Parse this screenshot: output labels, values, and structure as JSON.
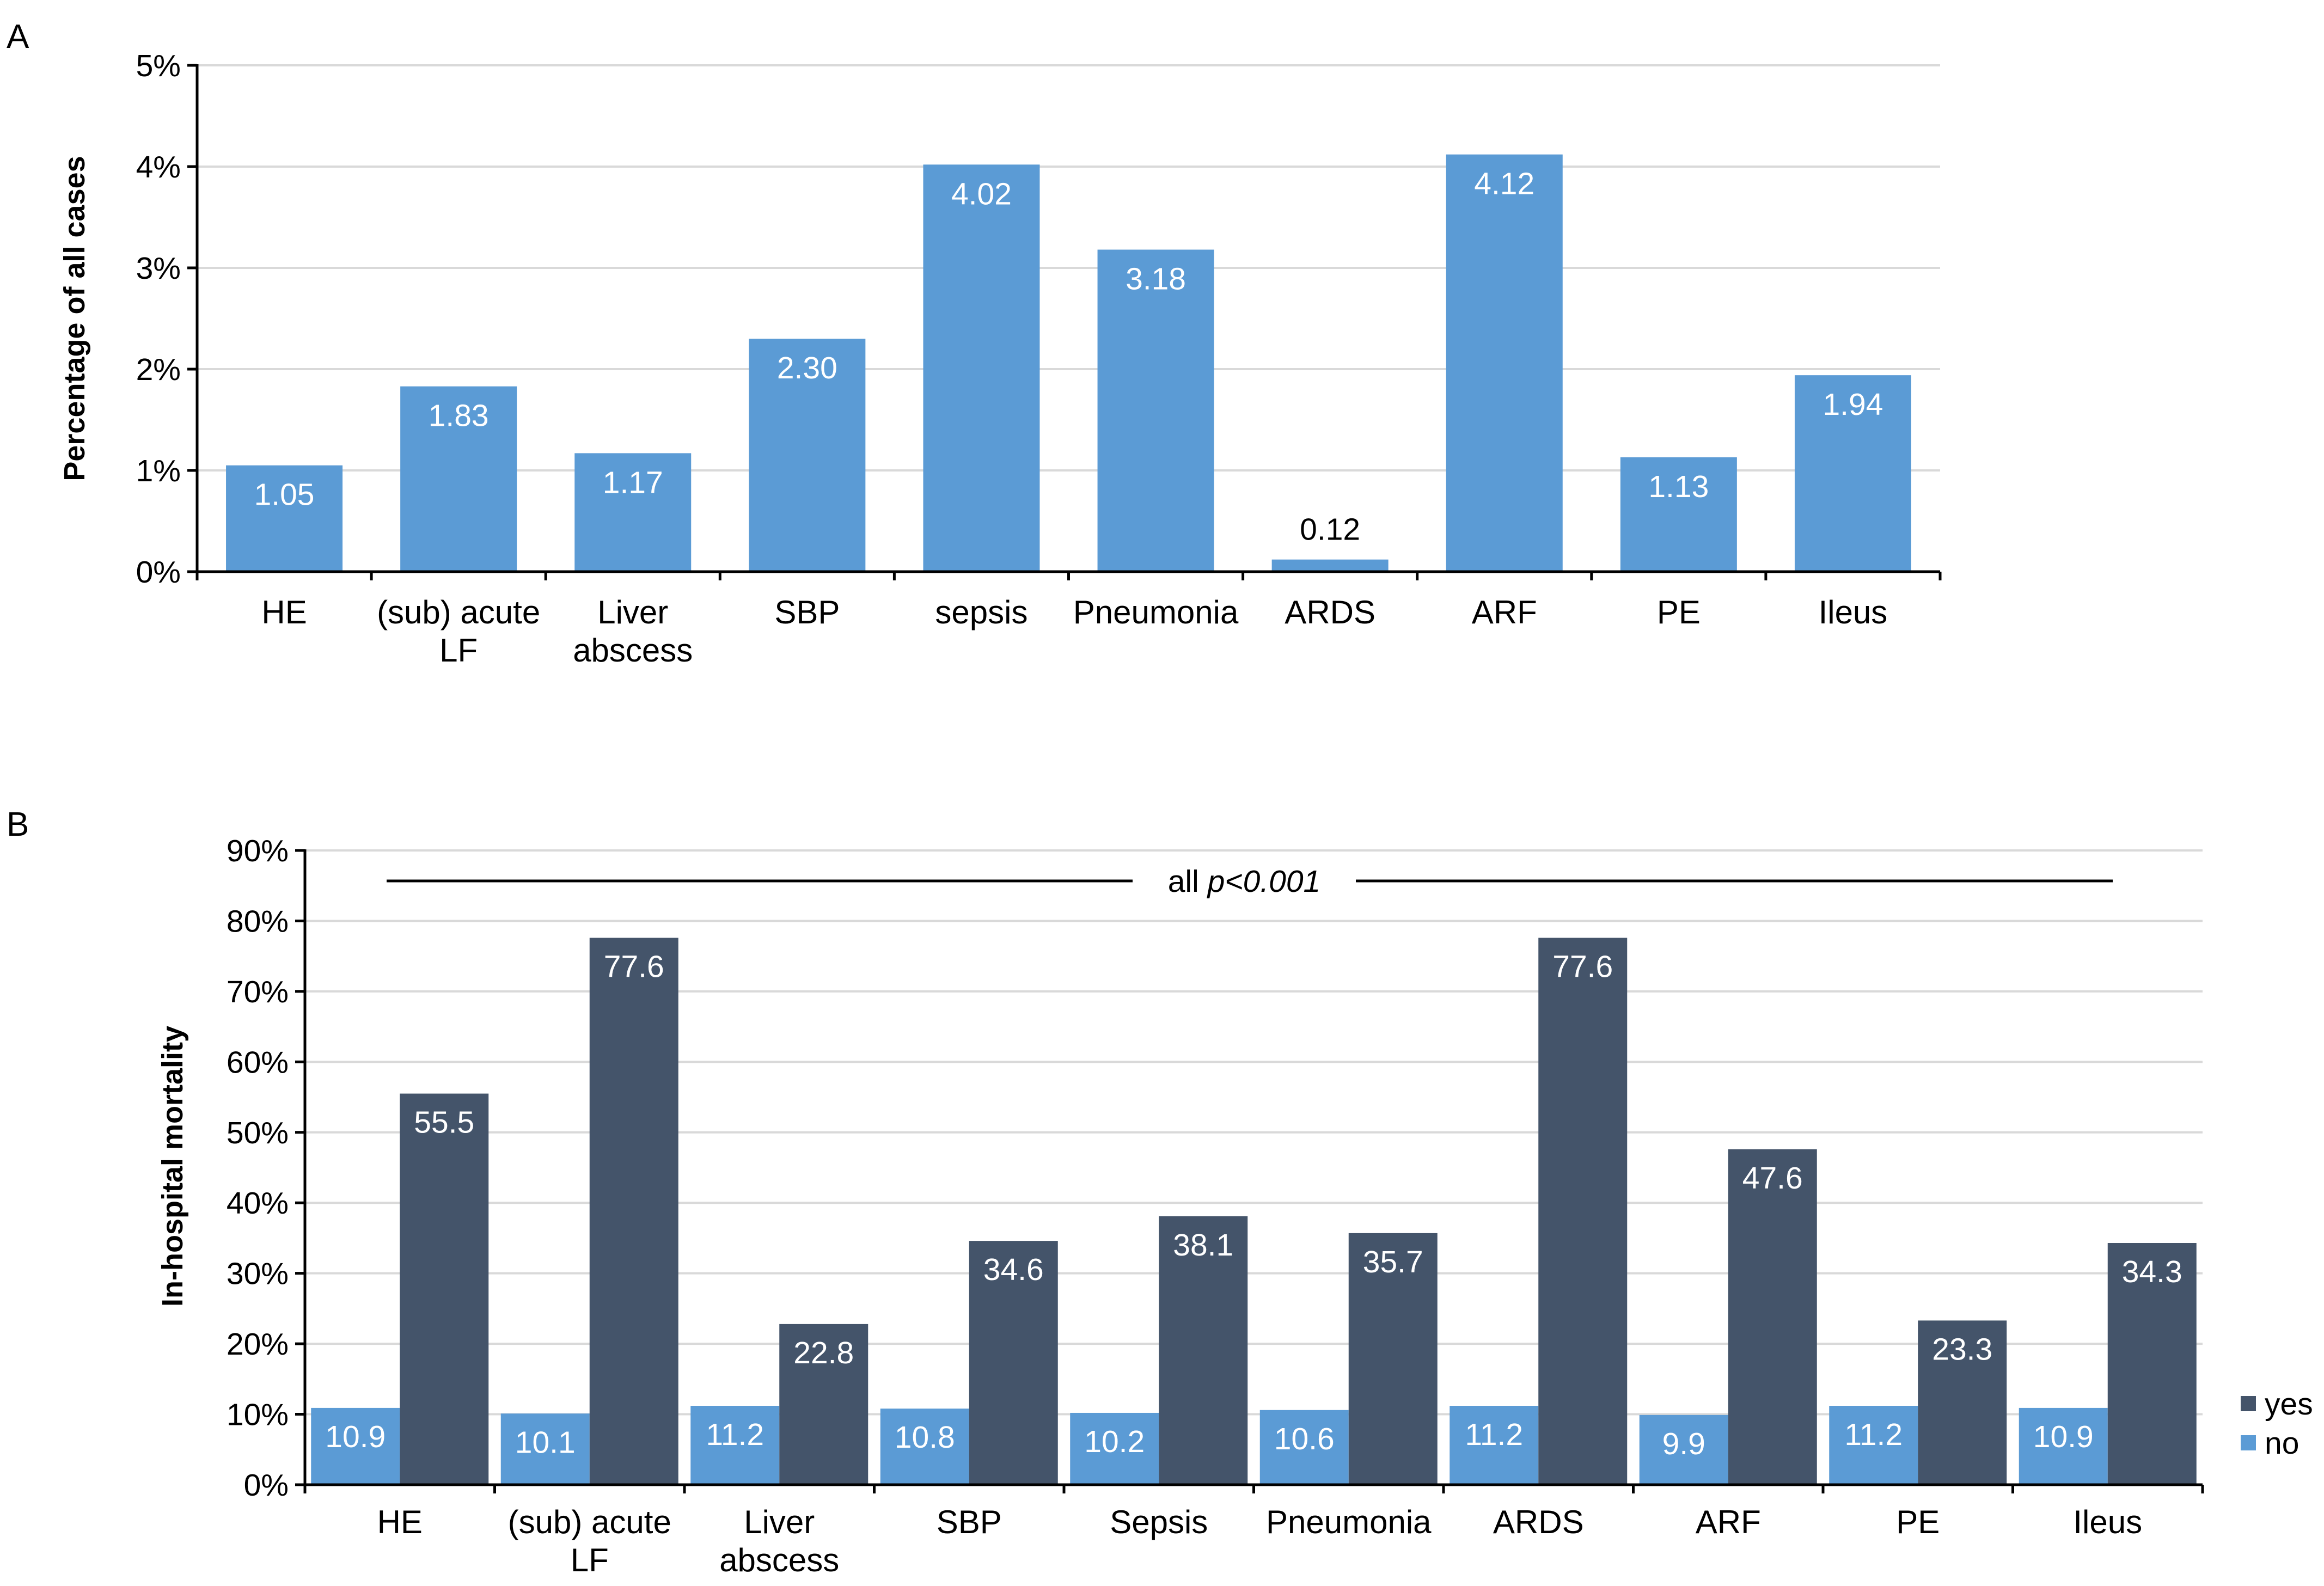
{
  "colors": {
    "bar_primary": "#5b9bd5",
    "bar_yes": "#44546a",
    "bar_no": "#5b9bd5",
    "gridline": "#d9d9d9",
    "axis": "#000000"
  },
  "chart_data": [
    {
      "panel": "A",
      "type": "bar",
      "title": "",
      "ylabel": "Percentage of all cases",
      "xlabel": "",
      "ylim": [
        0,
        5
      ],
      "yticks": [
        0,
        1,
        2,
        3,
        4,
        5
      ],
      "ytick_labels": [
        "0%",
        "1%",
        "2%",
        "3%",
        "4%",
        "5%"
      ],
      "grid": true,
      "categories": [
        [
          "HE"
        ],
        [
          "(sub) acute",
          "LF"
        ],
        [
          "Liver",
          "abscess"
        ],
        [
          "SBP"
        ],
        [
          "sepsis"
        ],
        [
          "Pneumonia"
        ],
        [
          "ARDS"
        ],
        [
          "ARF"
        ],
        [
          "PE"
        ],
        [
          "Ileus"
        ]
      ],
      "values": [
        1.05,
        1.83,
        1.17,
        2.3,
        4.02,
        3.18,
        0.12,
        4.12,
        1.13,
        1.94
      ],
      "value_labels": [
        "1.05",
        "1.83",
        "1.17",
        "2.30",
        "4.02",
        "3.18",
        "0.12",
        "4.12",
        "1.13",
        "1.94"
      ]
    },
    {
      "panel": "B",
      "type": "bar",
      "title": "",
      "ylabel": "In-hospital mortality",
      "xlabel": "",
      "ylim": [
        0,
        90
      ],
      "yticks": [
        0,
        10,
        20,
        30,
        40,
        50,
        60,
        70,
        80,
        90
      ],
      "ytick_labels": [
        "0%",
        "10%",
        "20%",
        "30%",
        "40%",
        "50%",
        "60%",
        "70%",
        "80%",
        "90%"
      ],
      "grid": true,
      "categories": [
        [
          "HE"
        ],
        [
          "(sub) acute",
          "LF"
        ],
        [
          "Liver",
          "abscess"
        ],
        [
          "SBP"
        ],
        [
          "Sepsis"
        ],
        [
          "Pneumonia"
        ],
        [
          "ARDS"
        ],
        [
          "ARF"
        ],
        [
          "PE"
        ],
        [
          "Ileus"
        ]
      ],
      "series": [
        {
          "name": "no",
          "values": [
            10.9,
            10.1,
            11.2,
            10.8,
            10.2,
            10.6,
            11.2,
            9.9,
            11.2,
            10.9
          ],
          "value_labels": [
            "10.9",
            "10.1",
            "11.2",
            "10.8",
            "10.2",
            "10.6",
            "11.2",
            "9.9",
            "11.2",
            "10.9"
          ]
        },
        {
          "name": "yes",
          "values": [
            55.5,
            77.6,
            22.8,
            34.6,
            38.1,
            35.7,
            77.6,
            47.6,
            23.3,
            34.3
          ],
          "value_labels": [
            "55.5",
            "77.6",
            "22.8",
            "34.6",
            "38.1",
            "35.7",
            "77.6",
            "47.6",
            "23.3",
            "34.3"
          ]
        }
      ],
      "legend": [
        "yes",
        "no"
      ],
      "legend_position": "right",
      "annotation": {
        "prefix": "all ",
        "emphasis": "p<0.001"
      }
    }
  ]
}
